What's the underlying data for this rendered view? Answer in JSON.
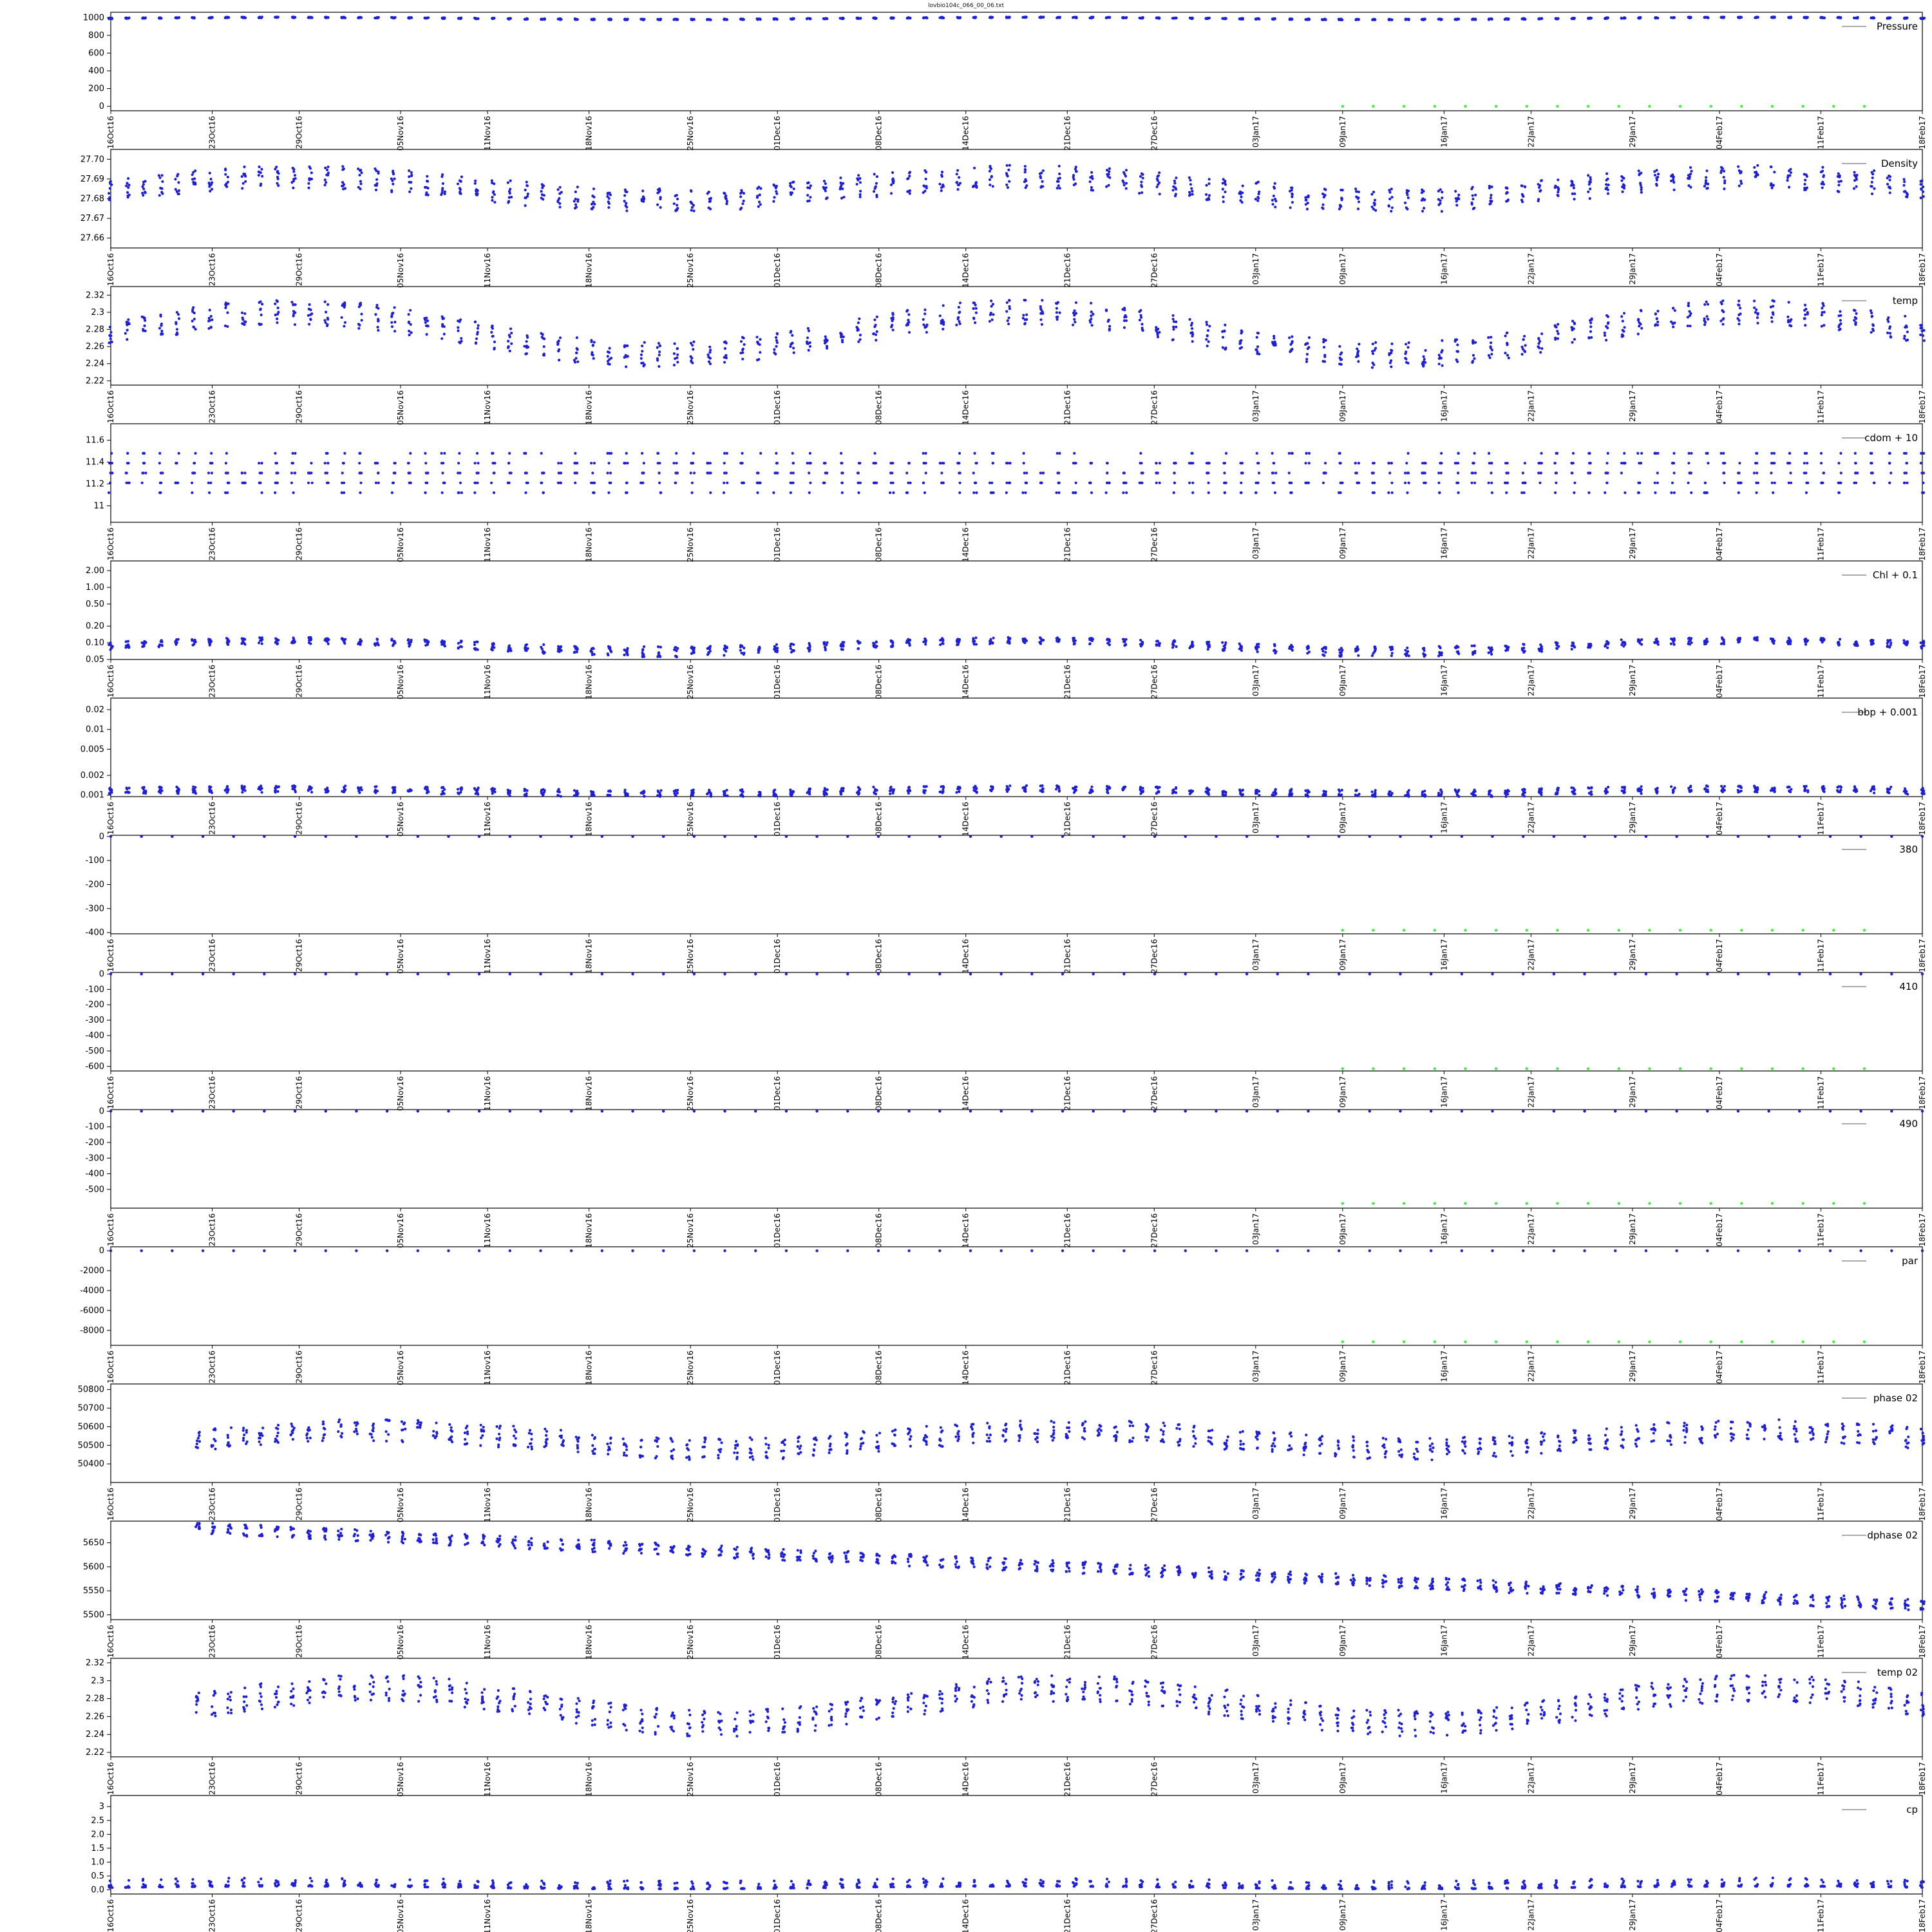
{
  "figure": {
    "title": "lovbio104c_066_00_06.txt"
  },
  "colors": {
    "marker": "#1f1fd6",
    "flag": "#3ef03e",
    "axis": "#000000"
  },
  "x_axis": {
    "range": [
      "2016-10-16",
      "2017-02-18"
    ],
    "tick_labels": [
      "16Oct16",
      "23Oct16",
      "29Oct16",
      "05Nov16",
      "11Nov16",
      "18Nov16",
      "25Nov16",
      "01Dec16",
      "08Dec16",
      "14Dec16",
      "21Dec16",
      "27Dec16",
      "03Jan17",
      "09Jan17",
      "16Jan17",
      "22Jan17",
      "29Jan17",
      "04Feb17",
      "11Feb17",
      "18Feb17"
    ],
    "tick_dates": [
      "2016-10-16",
      "2016-10-23",
      "2016-10-29",
      "2016-11-05",
      "2016-11-11",
      "2016-11-18",
      "2016-11-25",
      "2016-12-01",
      "2016-12-08",
      "2016-12-14",
      "2016-12-21",
      "2016-12-27",
      "2017-01-03",
      "2017-01-09",
      "2017-01-16",
      "2017-01-22",
      "2017-01-29",
      "2017-02-04",
      "2017-02-11",
      "2017-02-18"
    ]
  },
  "chart_data": [
    {
      "type": "scatter",
      "legend": "Pressure",
      "legend_position": "top-right",
      "ylim": [
        -50,
        1060
      ],
      "yticks": [
        0,
        200,
        400,
        600,
        800,
        1000
      ],
      "series": [
        {
          "role": "main",
          "start": "2016-10-16",
          "end": "2017-02-18",
          "base": 990,
          "amplitude": 12,
          "spread": 10
        },
        {
          "role": "flag",
          "start": "2017-01-09",
          "end": "2017-02-14",
          "base": 0,
          "amplitude": 0,
          "spread": 0
        }
      ]
    },
    {
      "type": "scatter",
      "legend": "Density",
      "legend_position": "top-right",
      "ylim": [
        27.655,
        27.705
      ],
      "yticks": [
        27.66,
        27.67,
        27.68,
        27.69,
        27.7
      ],
      "series": [
        {
          "role": "main",
          "start": "2016-10-16",
          "end": "2017-02-18",
          "base": 27.685,
          "amplitude": 0.006,
          "spread": 0.012
        }
      ]
    },
    {
      "type": "scatter",
      "legend": "temp",
      "legend_position": "top-right",
      "ylim": [
        2.215,
        2.33
      ],
      "yticks": [
        2.22,
        2.24,
        2.26,
        2.28,
        2.3,
        2.32
      ],
      "series": [
        {
          "role": "main",
          "start": "2016-10-16",
          "end": "2017-02-18",
          "base": 2.275,
          "amplitude": 0.025,
          "spread": 0.03
        }
      ]
    },
    {
      "type": "scatter",
      "legend": "cdom + 10",
      "legend_position": "top-right",
      "ylim": [
        10.85,
        11.75
      ],
      "yticks": [
        11.0,
        11.2,
        11.4,
        11.6
      ],
      "series": [
        {
          "role": "main",
          "start": "2016-10-16",
          "end": "2017-02-18",
          "base": 11.3,
          "amplitude": 0.05,
          "spread": 0.35,
          "step": 0.09
        }
      ]
    },
    {
      "type": "scatter",
      "legend": "Chl + 0.1",
      "legend_position": "top-right",
      "scale": "log",
      "ylim": [
        0.05,
        3.0
      ],
      "yticks": [
        0.05,
        0.1,
        0.2,
        0.5,
        1.0,
        2.0
      ],
      "series": [
        {
          "role": "main",
          "start": "2016-10-16",
          "end": "2017-02-18",
          "base": 0.09,
          "amplitude": 0.02,
          "spread": 0.03
        }
      ]
    },
    {
      "type": "scatter",
      "legend": "bbp + 0.001",
      "legend_position": "top-right",
      "scale": "log",
      "ylim": [
        0.00095,
        0.03
      ],
      "yticks": [
        0.001,
        0.002,
        0.005,
        0.01,
        0.02
      ],
      "series": [
        {
          "role": "main",
          "start": "2016-10-16",
          "end": "2017-02-18",
          "base": 0.00115,
          "amplitude": 0.0001,
          "spread": 0.0003
        }
      ]
    },
    {
      "type": "scatter",
      "legend": "380",
      "legend_position": "top-right",
      "ylim": [
        -405,
        5
      ],
      "yticks": [
        0,
        -100,
        -200,
        -300,
        -400
      ],
      "series": [
        {
          "role": "main",
          "start": "2016-10-16",
          "end": "2017-02-18",
          "base": 0,
          "amplitude": 0,
          "spread": 0,
          "sparse": true
        },
        {
          "role": "flag",
          "start": "2017-01-09",
          "end": "2017-02-14",
          "base": -390,
          "amplitude": 0,
          "spread": 0
        }
      ]
    },
    {
      "type": "scatter",
      "legend": "410",
      "legend_position": "top-right",
      "ylim": [
        -630,
        10
      ],
      "yticks": [
        0,
        -100,
        -200,
        -300,
        -400,
        -500,
        -600
      ],
      "series": [
        {
          "role": "main",
          "start": "2016-10-16",
          "end": "2017-02-18",
          "base": 0,
          "amplitude": 0,
          "spread": 0,
          "sparse": true
        },
        {
          "role": "flag",
          "start": "2017-01-09",
          "end": "2017-02-14",
          "base": -615,
          "amplitude": 0,
          "spread": 0
        }
      ]
    },
    {
      "type": "scatter",
      "legend": "490",
      "legend_position": "top-right",
      "ylim": [
        -620,
        10
      ],
      "yticks": [
        0,
        -100,
        -200,
        -300,
        -400,
        -500
      ],
      "series": [
        {
          "role": "main",
          "start": "2016-10-16",
          "end": "2017-02-18",
          "base": 0,
          "amplitude": 0,
          "spread": 0,
          "sparse": true
        },
        {
          "role": "flag",
          "start": "2017-01-09",
          "end": "2017-02-14",
          "base": -590,
          "amplitude": 0,
          "spread": 0
        }
      ]
    },
    {
      "type": "scatter",
      "legend": "par",
      "legend_position": "top-right",
      "ylim": [
        -9500,
        400
      ],
      "yticks": [
        0,
        -2000,
        -4000,
        -6000,
        -8000
      ],
      "series": [
        {
          "role": "main",
          "start": "2016-10-16",
          "end": "2017-02-18",
          "base": 0,
          "amplitude": 0,
          "spread": 0,
          "sparse": true
        },
        {
          "role": "flag",
          "start": "2017-01-09",
          "end": "2017-02-14",
          "base": -9150,
          "amplitude": 0,
          "spread": 0
        }
      ]
    },
    {
      "type": "scatter",
      "legend": "phase 02",
      "legend_position": "top-right",
      "ylim": [
        50300,
        50830
      ],
      "yticks": [
        50400,
        50500,
        50600,
        50700,
        50800
      ],
      "series": [
        {
          "role": "main",
          "start": "2016-10-22",
          "end": "2017-02-18",
          "base": 50530,
          "amplitude": 50,
          "spread": 120
        }
      ]
    },
    {
      "type": "scatter",
      "legend": "dphase 02",
      "legend_position": "top-right",
      "ylim": [
        5490,
        5695
      ],
      "yticks": [
        5500,
        5550,
        5600,
        5650
      ],
      "series": [
        {
          "role": "main",
          "start": "2016-10-22",
          "end": "2017-02-18",
          "base": 5600,
          "amplitude": 0,
          "spread": 25,
          "trend": [
            5680,
            5520
          ]
        }
      ]
    },
    {
      "type": "scatter",
      "legend": "temp 02",
      "legend_position": "top-right",
      "ylim": [
        2.215,
        2.325
      ],
      "yticks": [
        2.22,
        2.24,
        2.26,
        2.28,
        2.3,
        2.32
      ],
      "series": [
        {
          "role": "main",
          "start": "2016-10-22",
          "end": "2017-02-18",
          "base": 2.272,
          "amplitude": 0.02,
          "spread": 0.03
        }
      ]
    },
    {
      "type": "scatter",
      "legend": "cp",
      "legend_position": "top-right",
      "ylim": [
        -0.15,
        3.4
      ],
      "yticks": [
        0.0,
        0.5,
        1.0,
        1.5,
        2.0,
        2.5,
        3.0
      ],
      "series": [
        {
          "role": "main",
          "start": "2016-10-16",
          "end": "2017-02-18",
          "base": 0.08,
          "amplitude": 0.05,
          "spread": 0.3
        }
      ]
    }
  ]
}
